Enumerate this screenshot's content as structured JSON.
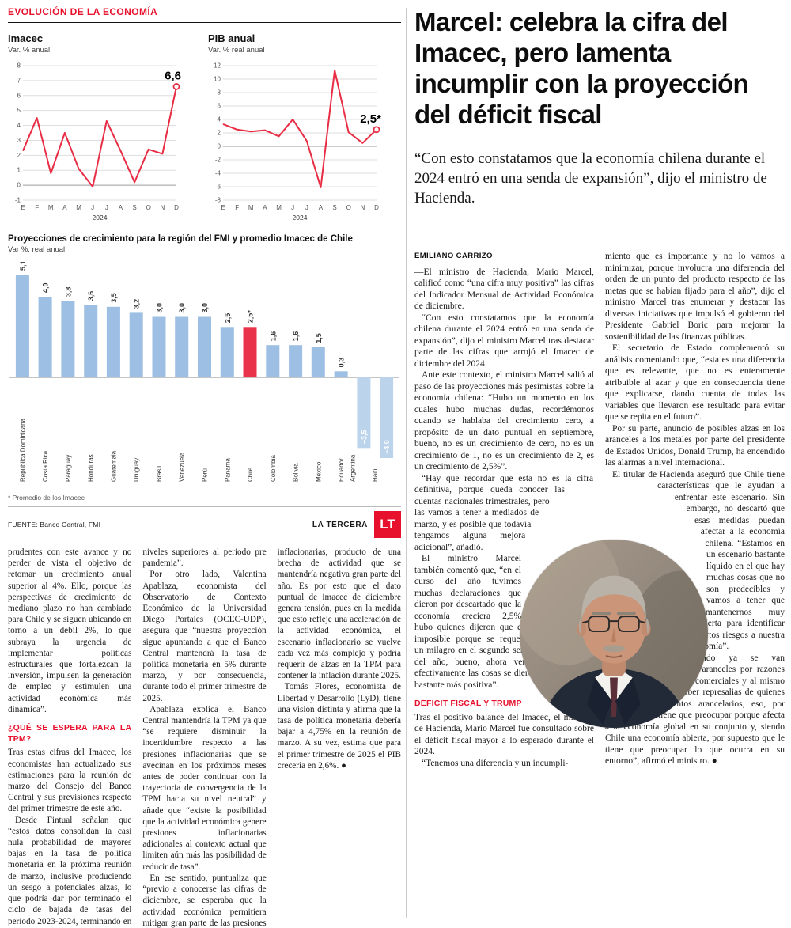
{
  "kicker": "EVOLUCIÓN DE LA ECONOMÍA",
  "charts_footnote": "* Promedio de los Imacec",
  "source": "FUENTE: Banco Central, FMI",
  "brand": {
    "name": "LA TERCERA",
    "logo": "LT"
  },
  "colors": {
    "accent": "#e8112d",
    "chart_red": "#e82d44",
    "bar_blue": "#9cbfe3",
    "bar_blue_light": "#bcd3ec",
    "highlight_red": "#e8334a"
  },
  "chart_data": [
    {
      "id": "imacec",
      "type": "line",
      "title": "Imacec",
      "subtitle": "Var. % anual",
      "x_labels": [
        "E",
        "F",
        "M",
        "A",
        "M",
        "J",
        "J",
        "A",
        "S",
        "O",
        "N",
        "D"
      ],
      "x_axis_note": "2024",
      "values": [
        2.3,
        4.5,
        0.8,
        3.5,
        1.1,
        -0.1,
        4.3,
        2.3,
        0.2,
        2.4,
        2.1,
        6.6
      ],
      "ylim": [
        -1,
        8
      ],
      "ytick_step": 1,
      "last_label": "6,6",
      "line_color": "#e82d44",
      "grid": true,
      "legend": "none"
    },
    {
      "id": "pib",
      "type": "line",
      "title": "PIB anual",
      "subtitle": "Var. % real anual",
      "x_labels": [
        "E",
        "F",
        "M",
        "A",
        "M",
        "J",
        "J",
        "A",
        "S",
        "O",
        "N",
        "D"
      ],
      "x_axis_note": "2024",
      "values": [
        3.3,
        2.5,
        2.2,
        2.4,
        1.5,
        4.0,
        0.8,
        -6.1,
        11.3,
        2.1,
        0.5,
        2.5
      ],
      "ylim": [
        -8,
        12
      ],
      "ytick_step": 2,
      "last_label": "2,5*",
      "line_color": "#e82d44",
      "grid": true,
      "legend": "none"
    },
    {
      "id": "regional",
      "type": "bar",
      "title": "Proyecciones de crecimiento para la región del FMI y promedio Imacec de Chile",
      "subtitle": "Var %. real anual",
      "categories": [
        "República Dominicana",
        "Costa Rica",
        "Paraguay",
        "Honduras",
        "Guatemala",
        "Uruguay",
        "Brasil",
        "Venezuela",
        "Perú",
        "Panamá",
        "Chile",
        "Colombia",
        "Bolivia",
        "México",
        "Ecuador",
        "Argentina",
        "Haití"
      ],
      "values": [
        5.1,
        4.0,
        3.8,
        3.6,
        3.5,
        3.2,
        3.0,
        3.0,
        3.0,
        2.5,
        2.5,
        1.6,
        1.6,
        1.5,
        0.3,
        -3.5,
        -4.0
      ],
      "value_labels": [
        "5,1",
        "4,0",
        "3,8",
        "3,6",
        "3,5",
        "3,2",
        "3,0",
        "3,0",
        "3,0",
        "2,5",
        "2,5*",
        "1,6",
        "1,6",
        "1,5",
        "0,3",
        "−3,5",
        "−4,0"
      ],
      "highlight_index": 10,
      "bar_color": "#9cbfe3",
      "negative_bar_color": "#bcd3ec",
      "highlight_color": "#e8334a",
      "ylim": [
        -4.5,
        5.5
      ]
    }
  ],
  "headline": "Marcel: celebra la cifra del Imacec, pero lamenta incumplir con la proyección del déficit fiscal",
  "lede": "“Con esto constatamos que la economía chilena durante el 2024 entró en una senda de expansión”, dijo el ministro de Hacienda.",
  "left_article": {
    "paragraphs": [
      {
        "t": "p",
        "text": "prudentes con este avance y no perder de vista el objetivo de retomar un crecimiento anual superior al 4%. Ello, porque las perspectivas de crecimiento de mediano plazo no han cambiado para Chile y se siguen ubicando en torno a un débil 2%, lo que subraya la urgencia de implementar políticas estructurales que fortalezcan la inversión, impulsen la generación de empleo y estimulen una actividad económica más dinámica”."
      },
      {
        "t": "h",
        "text": "¿QUÉ SE ESPERA PARA LA TPM?"
      },
      {
        "t": "p",
        "text": "Tras estas cifras del Imacec, los economistas han actualizado sus estimaciones para la reunión de marzo del Consejo del Banco Central y sus previsiones respecto del primer trimestre de este año."
      },
      {
        "t": "p",
        "text": "Desde Fintual señalan que “estos datos consolidan la casi nula probabilidad de mayores bajas en la tasa de política monetaria en la próxima reunión de marzo, inclusive produciendo un sesgo a potenciales alzas, lo que podría dar por terminado el ciclo de bajada de tasas del periodo 2023-2024, terminando en niveles superiores al periodo pre pandemia”."
      },
      {
        "t": "p",
        "text": "Por otro lado, Valentina Apablaza, economista del Observatorio de Contexto Económico de la Universidad Diego Portales (OCEC-UDP), asegura que “nuestra proyección sigue apuntando a que el Banco Central mantendrá la tasa de política monetaria en 5% durante marzo, y por consecuencia, durante todo el primer trimestre de 2025."
      },
      {
        "t": "p",
        "text": "Apablaza explica el Banco Central mantendría la TPM ya que “se requiere disminuir la incertidumbre respecto a las presiones inflacionarias que se avecinan en los próximos meses antes de poder continuar con la trayectoria de convergencia de la TPM hacia su nivel neutral” y añade que “existe la posibilidad que la actividad económica genere presiones inflacionarias adicionales al contexto actual que limiten aún más las posibilidad de reducir de tasa”."
      },
      {
        "t": "p",
        "text": "En ese sentido, puntualiza que “previo a conocerse las cifras de diciembre, se esperaba que la actividad económica permitiera mitigar gran parte de las presiones inflacionarias, producto de una brecha de actividad que se mantendría negativa gran parte del año. Es por esto que el dato puntual de imacec de diciembre genera tensión, pues en la medida que esto refleje una aceleración de la actividad económica, el escenario inflacionario se vuelve cada vez más complejo y podría requerir de alzas en la TPM para contener la inflación durante 2025."
      },
      {
        "t": "p",
        "text": "Tomás Flores, economista de Libertad y Desarrollo (LyD), tiene una visión distinta y afirma que la tasa de política monetaria debería bajar a 4,75% en la reunión de marzo. A su vez, estima que para el primer trimestre de 2025 el PIB crecería en 2,6%. ●"
      }
    ]
  },
  "right_article": {
    "col1": [
      {
        "t": "byline",
        "text": "EMILIANO CARRIZO"
      },
      {
        "t": "p",
        "text": "—El ministro de Hacienda, Mario Marcel, calificó como “una cifra muy positiva” las cifras del Indicador Mensual de Actividad Económica de diciembre."
      },
      {
        "t": "p",
        "text": "“Con esto constatamos que la economía chilena durante el 2024 entró en una senda de expansión”, dijo el ministro Marcel tras destacar parte de las cifras que arrojó el Imacec de diciembre del 2024."
      },
      {
        "t": "p",
        "text": "Ante este contexto, el ministro Marcel salió al paso de las proyecciones más pesimistas sobre la economía chilena: “Hubo un momento en los cuales hubo muchas dudas, recordémonos cuando se hablaba del crecimiento cero, a propósito de un dato puntual en septiembre, bueno, no es un crecimiento de cero, no es un crecimiento de 1, no es un crecimiento de 2, es un crecimiento de 2,5%”."
      },
      {
        "t": "p",
        "text": "“Hay que recordar que esta no es la cifra definitiva, porque queda conocer las cuentas nacionales trimestrales, pero las vamos a tener a mediados de marzo, y es posible que todavía tengamos alguna mejora adicional”, añadió."
      },
      {
        "t": "p",
        "text": "El ministro Marcel también comentó que, “en el curso del año tuvimos muchas declaraciones que dieron por descartado que la economía creciera 2,5%, hubo quienes dijeron que era imposible porque se requeriría un milagro en el segundo semestre del año, bueno, ahora vemos que efectivamente las cosas se dieron de manera bastante más positiva”."
      },
      {
        "t": "h",
        "text": "DÉFICIT FISCAL Y TRUMP"
      },
      {
        "t": "p",
        "text": "Tras el positivo balance del Imacec, el ministro de Hacienda, Mario Marcel fue consultado sobre el déficit fiscal mayor a lo esperado durante el 2024."
      },
      {
        "t": "p",
        "text": "“Tenemos una diferencia y un incumpli-"
      }
    ],
    "col2": [
      {
        "t": "p",
        "text": "miento que es importante y no lo vamos a minimizar, porque involucra una diferencia del orden de un punto del producto respecto de las metas que se habían fijado para el año”, dijo el ministro Marcel tras enumerar y destacar las diversas iniciativas que impulsó el gobierno del Presidente Gabriel Boric para mejorar la sostenibilidad de las finanzas públicas."
      },
      {
        "t": "p",
        "text": "El secretario de Estado complementó su análisis comentando que, “esta es una diferencia que es relevante, que no es enteramente atribuible al azar y que en consecuencia tiene que explicarse, dando cuenta de todas las variables que llevaron ese resultado para evitar que se repita en el futuro”."
      },
      {
        "t": "p",
        "text": "Por su parte, anuncio de posibles alzas en los aranceles a los metales por parte del presidente de Estados Unidos, Donald Trump, ha encendido las alarmas a nivel internacional."
      },
      {
        "t": "p",
        "text": "El titular de Hacienda aseguró que Chile tiene características que le ayudan a enfrentar este escenario. Sin embargo, no descartó que esas medidas puedan afectar a la economía chilena. “Estamos en un escenario bastante líquido en el que hay muchas cosas que no son predecibles y vamos a tener que mantenernos muy alerta para identificar ciertos riesgos a nuestra economía”."
      },
      {
        "t": "p",
        "text": "“Cuando ya se van agregando aranceles por razones que escapan a materias comerciales y al mismo tiempo empiezan a haber represalias de quienes sufren esos aumentos arancelarios, eso, por supuesto, nos tiene que preocupar porque afecta a la economía global en su conjunto y, siendo Chile una economía abierta, por supuesto que le tiene que preocupar lo que ocurra en su entorno”, afirmó el ministro. ●"
      }
    ]
  }
}
